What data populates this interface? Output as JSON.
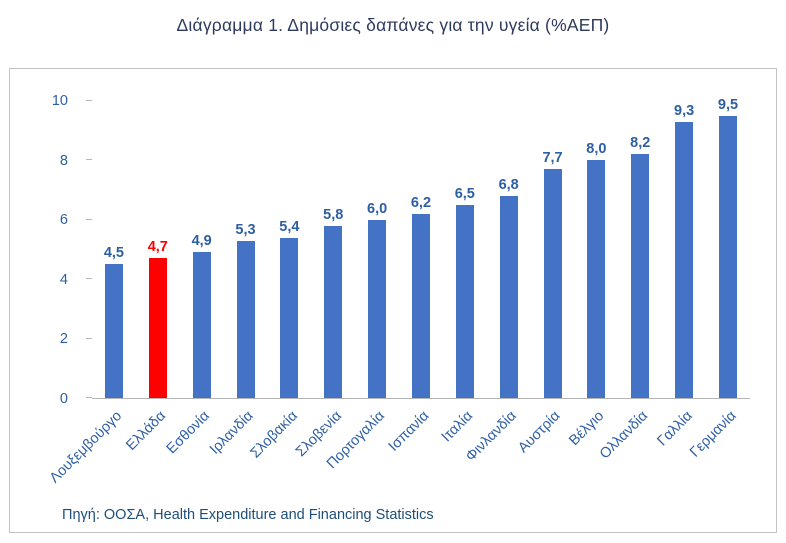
{
  "title": "Διάγραμμα 1. Δημόσιες δαπάνες για την υγεία (%ΑΕΠ)",
  "source": "Πηγή: ΟΟΣΑ, Health Expenditure and Financing Statistics",
  "colors": {
    "bar_blue": "#4472C4",
    "highlight_red": "#FF0000",
    "label_blue": "#2E5FA3",
    "source_blue": "#1F4E79"
  },
  "chart_data": {
    "type": "bar",
    "title": "Διάγραμμα 1. Δημόσιες δαπάνες για την υγεία (%ΑΕΠ)",
    "categories": [
      "Λουξεμβούργο",
      "Ελλάδα",
      "Εσθονία",
      "Ιρλανδία",
      "Σλοβακία",
      "Σλοβενία",
      "Πορτογαλία",
      "Ισπανία",
      "Ιταλία",
      "Φινλανδία",
      "Αυστρία",
      "Βέλγιο",
      "Ολλανδία",
      "Γαλλία",
      "Γερμανία"
    ],
    "values": [
      4.5,
      4.7,
      4.9,
      5.3,
      5.4,
      5.8,
      6.0,
      6.2,
      6.5,
      6.8,
      7.7,
      8.0,
      8.2,
      9.3,
      9.5
    ],
    "value_labels": [
      "4,5",
      "4,7",
      "4,9",
      "5,3",
      "5,4",
      "5,8",
      "6,0",
      "6,2",
      "6,5",
      "6,8",
      "7,7",
      "8,0",
      "8,2",
      "9,3",
      "9,5"
    ],
    "highlight_index": 1,
    "bar_color": "#4472C4",
    "highlight_color": "#FF0000",
    "label_color": "#2E5FA3",
    "highlight_label_color": "#FF0000",
    "xlabel": "",
    "ylabel": "",
    "ylim": [
      0,
      10
    ],
    "yticks": [
      0,
      2,
      4,
      6,
      8,
      10
    ],
    "grid": false,
    "legend": false,
    "annotation": "Πηγή: ΟΟΣΑ, Health Expenditure and Financing Statistics"
  }
}
